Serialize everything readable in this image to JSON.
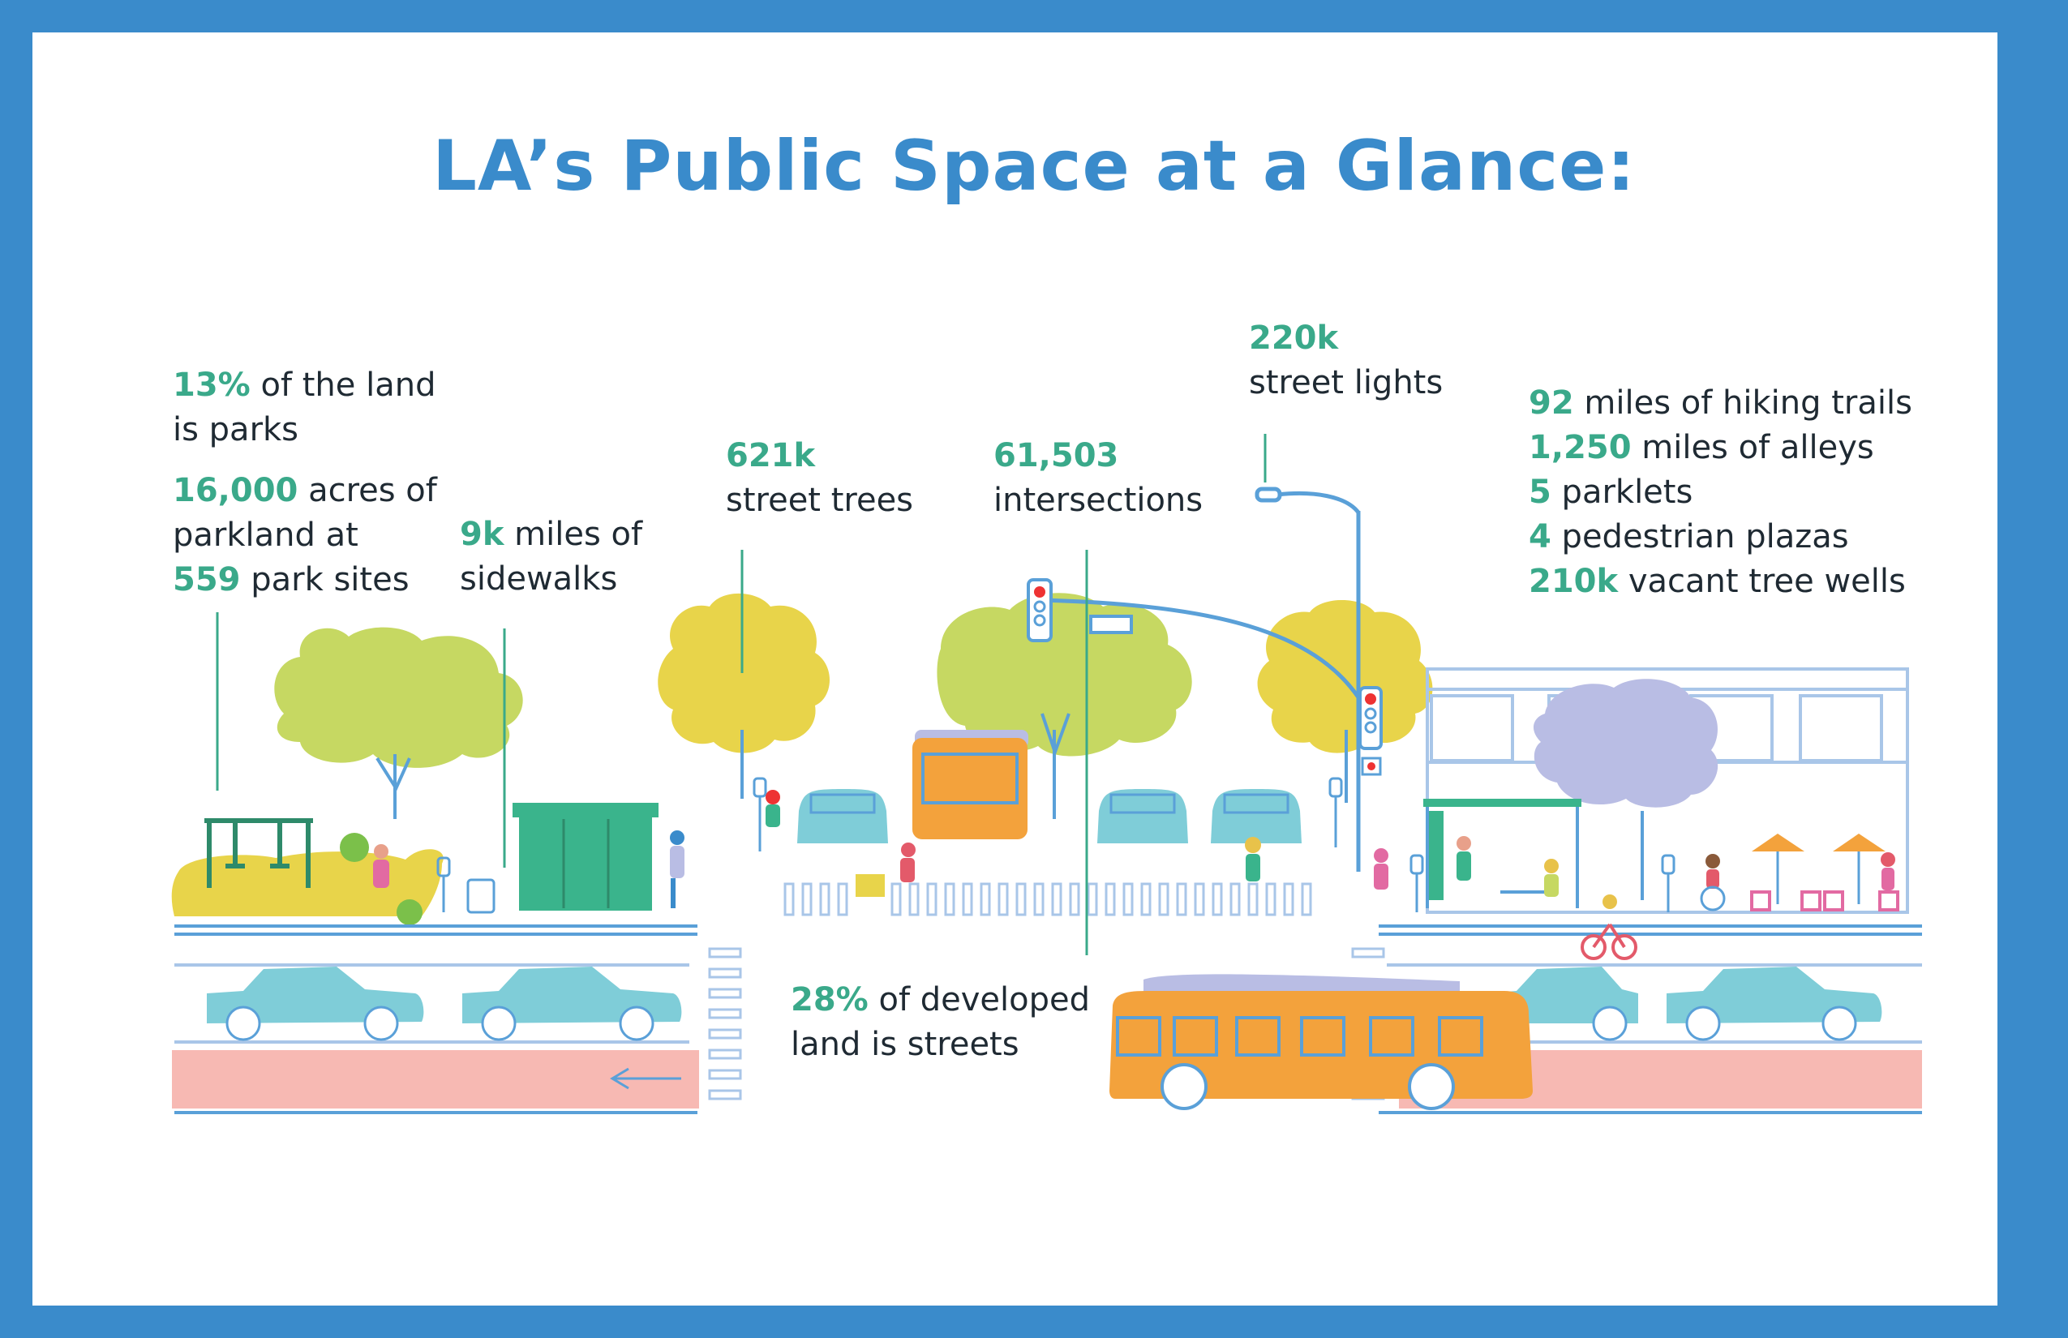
{
  "title": "LA’s Public Space at a Glance:",
  "colors": {
    "border": "#3a8bcb",
    "title": "#3a8bcb",
    "stat_number": "#3aa98a",
    "text": "#1f2a33",
    "tree_green": "#c6d862",
    "tree_yellow": "#e8d44a",
    "tree_lavender": "#b9bde4",
    "car": "#7fcdd8",
    "bus": "#f3a23c",
    "bike_lane": "#f7b9b3",
    "kiosk": "#3ab48c",
    "park_ground": "#e8d44a",
    "street_line": "#5aa0d8"
  },
  "stats": {
    "parks": {
      "num": "13%",
      "text1": " of the land",
      "text2": "is parks"
    },
    "acres": {
      "num1": "16,000",
      "text1": " acres of",
      "text2": "parkland at",
      "num3": "559",
      "text3": " park sites"
    },
    "sidewalks": {
      "num": "9k",
      "text1": " miles of",
      "text2": "sidewalks"
    },
    "trees": {
      "num": "621k",
      "text2": "street trees"
    },
    "intersections": {
      "num": "61,503",
      "text2": "intersections"
    },
    "lights": {
      "num": "220k",
      "text2": "street lights"
    },
    "streets": {
      "num": "28%",
      "text1": " of developed",
      "text2": "land is streets"
    },
    "right_list": [
      {
        "num": "92",
        "text": " miles of hiking trails"
      },
      {
        "num": "1,250",
        "text": " miles of alleys"
      },
      {
        "num": "5",
        "text": " parklets"
      },
      {
        "num": "4",
        "text": " pedestrian plazas"
      },
      {
        "num": "210k",
        "text": " vacant tree wells"
      }
    ]
  }
}
